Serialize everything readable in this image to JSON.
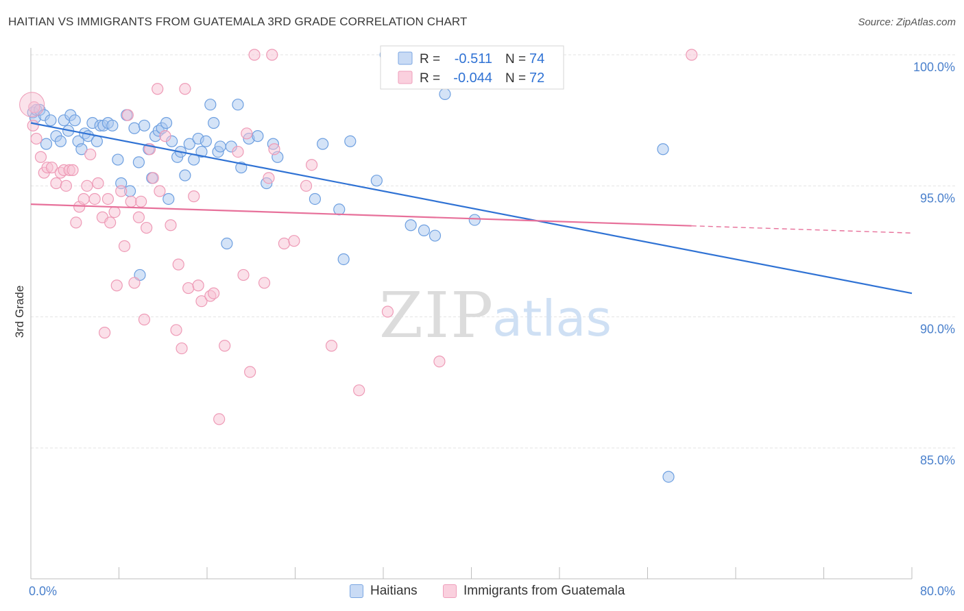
{
  "header": {
    "title": "HAITIAN VS IMMIGRANTS FROM GUATEMALA 3RD GRADE CORRELATION CHART",
    "source": "Source: ZipAtlas.com"
  },
  "watermark": {
    "zip": "ZIP",
    "atlas": "atlas"
  },
  "colors": {
    "blue_fill": "#aac7ef",
    "blue_stroke": "#6d9fe0",
    "blue_line": "#2f72d4",
    "pink_fill": "#f7c2d3",
    "pink_stroke": "#ee9ab6",
    "pink_line": "#e7709a",
    "axis_text": "#4a80cc",
    "grid": "#e3e3e3"
  },
  "legend_top": {
    "rows": [
      {
        "r_label": "R =",
        "r_value": "-0.511",
        "n_label": "N =",
        "n_value": "74"
      },
      {
        "r_label": "R =",
        "r_value": "-0.044",
        "n_label": "N =",
        "n_value": "72"
      }
    ]
  },
  "legend_bottom": {
    "items": [
      "Haitians",
      "Immigrants from Guatemala"
    ]
  },
  "chart_data": {
    "type": "scatter",
    "title": "HAITIAN VS IMMIGRANTS FROM GUATEMALA 3RD GRADE CORRELATION CHART",
    "xlabel": "",
    "ylabel": "3rd Grade",
    "xlim": [
      0,
      80
    ],
    "ylim": [
      80.5,
      100.8
    ],
    "x_tick_labels": [
      "0.0%",
      "80.0%"
    ],
    "y_ticks": [
      85,
      90,
      95,
      100
    ],
    "y_tick_labels": [
      "85.0%",
      "90.0%",
      "95.0%",
      "100.0%"
    ],
    "grid": true,
    "series": [
      {
        "name": "Haitians",
        "color": "#6d9fe0",
        "r": -0.511,
        "n": 74,
        "trend": {
          "x": [
            0,
            80
          ],
          "y": [
            97.4,
            90.9
          ],
          "dashed_from": null
        },
        "points": [
          [
            0.2,
            97.8
          ],
          [
            0.4,
            97.6
          ],
          [
            0.5,
            97.9
          ],
          [
            0.8,
            97.9
          ],
          [
            1.2,
            97.7
          ],
          [
            1.4,
            96.6
          ],
          [
            1.8,
            97.5
          ],
          [
            2.3,
            96.9
          ],
          [
            2.7,
            96.7
          ],
          [
            3.0,
            97.5
          ],
          [
            3.4,
            97.1
          ],
          [
            3.6,
            97.7
          ],
          [
            4.0,
            97.5
          ],
          [
            4.3,
            96.7
          ],
          [
            4.6,
            96.4
          ],
          [
            4.9,
            97.0
          ],
          [
            5.2,
            96.9
          ],
          [
            5.6,
            97.4
          ],
          [
            6.0,
            96.7
          ],
          [
            6.3,
            97.3
          ],
          [
            6.6,
            97.3
          ],
          [
            7.0,
            97.4
          ],
          [
            7.4,
            97.3
          ],
          [
            7.9,
            96.0
          ],
          [
            8.2,
            95.1
          ],
          [
            8.7,
            97.7
          ],
          [
            9.0,
            94.8
          ],
          [
            9.4,
            97.2
          ],
          [
            9.8,
            95.9
          ],
          [
            10.3,
            97.3
          ],
          [
            10.7,
            96.4
          ],
          [
            11.0,
            95.3
          ],
          [
            11.3,
            96.9
          ],
          [
            11.6,
            97.1
          ],
          [
            11.9,
            97.2
          ],
          [
            12.3,
            97.4
          ],
          [
            12.5,
            94.5
          ],
          [
            12.8,
            96.7
          ],
          [
            13.3,
            96.1
          ],
          [
            13.6,
            96.3
          ],
          [
            14.0,
            95.4
          ],
          [
            14.4,
            96.6
          ],
          [
            14.8,
            96.0
          ],
          [
            15.2,
            96.8
          ],
          [
            15.5,
            96.3
          ],
          [
            15.9,
            96.7
          ],
          [
            16.3,
            98.1
          ],
          [
            16.6,
            97.4
          ],
          [
            17.0,
            96.3
          ],
          [
            17.2,
            96.5
          ],
          [
            17.8,
            92.8
          ],
          [
            18.2,
            96.5
          ],
          [
            18.8,
            98.1
          ],
          [
            19.1,
            95.7
          ],
          [
            19.8,
            96.8
          ],
          [
            20.6,
            96.9
          ],
          [
            21.4,
            95.1
          ],
          [
            22.0,
            96.6
          ],
          [
            22.4,
            96.1
          ],
          [
            9.9,
            91.6
          ],
          [
            25.8,
            94.5
          ],
          [
            26.5,
            96.6
          ],
          [
            28.0,
            94.1
          ],
          [
            28.4,
            92.2
          ],
          [
            29.0,
            96.7
          ],
          [
            31.4,
            95.2
          ],
          [
            32.2,
            100.0
          ],
          [
            34.5,
            93.5
          ],
          [
            35.7,
            93.3
          ],
          [
            36.7,
            93.1
          ],
          [
            37.6,
            98.5
          ],
          [
            40.3,
            93.7
          ],
          [
            57.4,
            96.4
          ],
          [
            57.9,
            83.9
          ]
        ]
      },
      {
        "name": "Immigrants from Guatemala",
        "color": "#ee9ab6",
        "r": -0.044,
        "n": 72,
        "trend": {
          "x": [
            0,
            80
          ],
          "y": [
            94.3,
            93.2
          ],
          "dashed_from": 60
        },
        "points": [
          [
            0.2,
            97.3
          ],
          [
            0.5,
            96.8
          ],
          [
            0.9,
            96.1
          ],
          [
            1.2,
            95.5
          ],
          [
            1.5,
            95.7
          ],
          [
            1.9,
            95.7
          ],
          [
            2.3,
            95.1
          ],
          [
            2.7,
            95.5
          ],
          [
            3.0,
            95.6
          ],
          [
            3.2,
            95.0
          ],
          [
            3.5,
            95.6
          ],
          [
            3.8,
            95.6
          ],
          [
            4.1,
            93.6
          ],
          [
            4.4,
            94.2
          ],
          [
            4.8,
            94.5
          ],
          [
            5.1,
            95.0
          ],
          [
            5.4,
            96.2
          ],
          [
            5.8,
            94.5
          ],
          [
            6.1,
            95.1
          ],
          [
            6.5,
            93.8
          ],
          [
            6.7,
            89.4
          ],
          [
            7.0,
            94.5
          ],
          [
            7.2,
            93.6
          ],
          [
            7.6,
            94.0
          ],
          [
            7.8,
            91.2
          ],
          [
            8.2,
            94.8
          ],
          [
            8.5,
            92.7
          ],
          [
            8.8,
            97.7
          ],
          [
            9.1,
            94.4
          ],
          [
            9.4,
            91.3
          ],
          [
            9.8,
            93.8
          ],
          [
            10.0,
            94.4
          ],
          [
            10.3,
            89.9
          ],
          [
            10.5,
            93.4
          ],
          [
            10.8,
            96.4
          ],
          [
            11.1,
            95.3
          ],
          [
            11.5,
            98.7
          ],
          [
            11.7,
            94.8
          ],
          [
            12.2,
            96.9
          ],
          [
            12.7,
            93.5
          ],
          [
            13.2,
            89.5
          ],
          [
            13.4,
            92.0
          ],
          [
            13.7,
            88.8
          ],
          [
            14.0,
            98.7
          ],
          [
            14.3,
            91.1
          ],
          [
            14.8,
            94.6
          ],
          [
            15.2,
            91.2
          ],
          [
            15.5,
            90.6
          ],
          [
            16.3,
            90.8
          ],
          [
            16.6,
            90.9
          ],
          [
            17.1,
            86.1
          ],
          [
            17.6,
            88.9
          ],
          [
            18.8,
            96.3
          ],
          [
            19.3,
            91.6
          ],
          [
            19.6,
            97.0
          ],
          [
            19.9,
            87.9
          ],
          [
            20.3,
            100.0
          ],
          [
            21.2,
            91.3
          ],
          [
            21.6,
            95.3
          ],
          [
            21.9,
            100.0
          ],
          [
            22.1,
            96.4
          ],
          [
            23.0,
            92.8
          ],
          [
            23.9,
            92.9
          ],
          [
            25.0,
            95.0
          ],
          [
            25.5,
            95.8
          ],
          [
            27.3,
            88.9
          ],
          [
            29.8,
            87.2
          ],
          [
            32.4,
            90.2
          ],
          [
            37.1,
            88.3
          ],
          [
            38.4,
            100.0
          ],
          [
            60.0,
            100.0
          ],
          [
            0.3,
            98.0
          ]
        ]
      }
    ]
  }
}
